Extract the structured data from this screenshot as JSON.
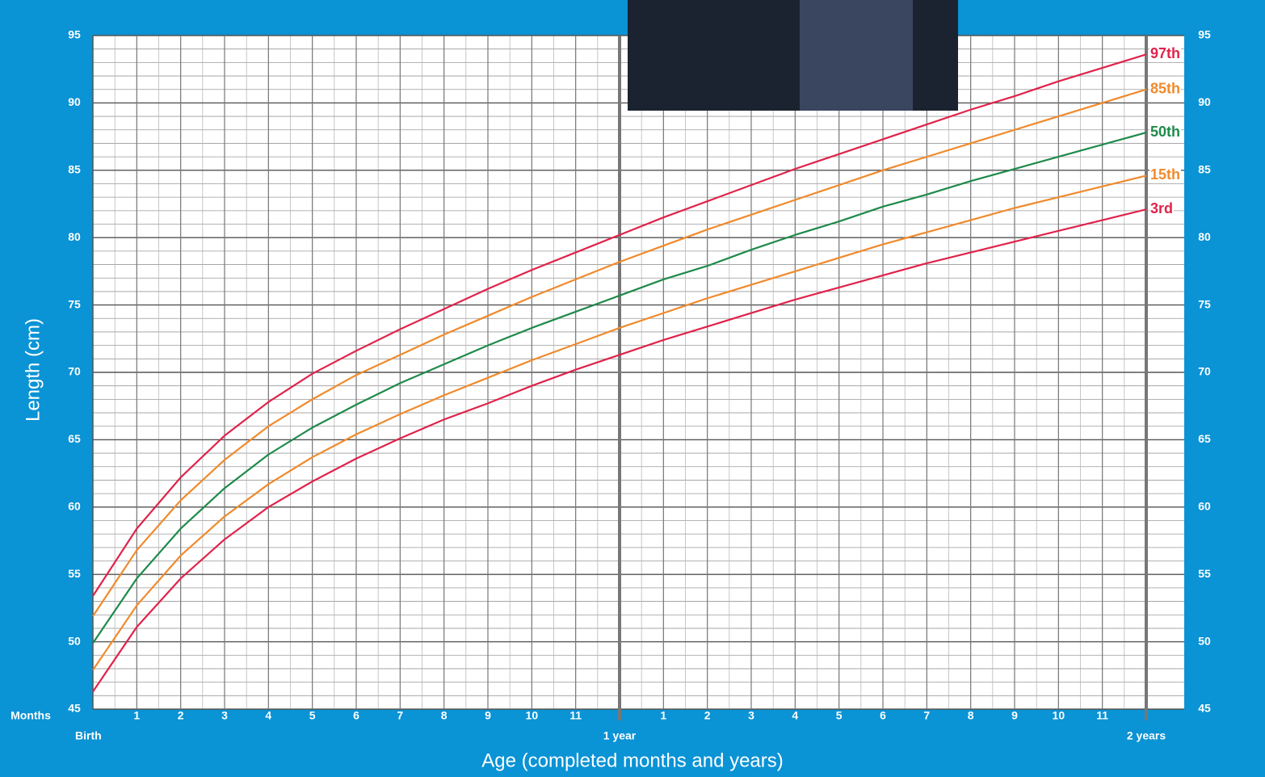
{
  "chart_data": {
    "type": "line",
    "y_label": "Length (cm)",
    "x_label": "Age (completed months and years)",
    "x_unit_label": "Months",
    "x": [
      0,
      1,
      2,
      3,
      4,
      5,
      6,
      7,
      8,
      9,
      10,
      11,
      12,
      13,
      14,
      15,
      16,
      17,
      18,
      19,
      20,
      21,
      22,
      23,
      24
    ],
    "series": [
      {
        "name": "97th",
        "color": "#e0234a",
        "values": [
          53.4,
          58.4,
          62.2,
          65.3,
          67.8,
          69.9,
          71.6,
          73.2,
          74.7,
          76.2,
          77.6,
          78.9,
          80.2,
          81.5,
          82.7,
          83.9,
          85.1,
          86.2,
          87.3,
          88.4,
          89.5,
          90.5,
          91.6,
          92.6,
          93.6
        ]
      },
      {
        "name": "85th",
        "color": "#f08a2c",
        "values": [
          51.9,
          56.8,
          60.5,
          63.5,
          66.0,
          68.0,
          69.8,
          71.3,
          72.8,
          74.2,
          75.6,
          76.9,
          78.2,
          79.4,
          80.6,
          81.7,
          82.8,
          83.9,
          85.0,
          86.0,
          87.0,
          88.0,
          89.0,
          90.0,
          91.0
        ]
      },
      {
        "name": "50th",
        "color": "#1e8a4a",
        "values": [
          49.9,
          54.7,
          58.4,
          61.4,
          63.9,
          65.9,
          67.6,
          69.2,
          70.6,
          72.0,
          73.3,
          74.5,
          75.7,
          76.9,
          77.9,
          79.1,
          80.2,
          81.2,
          82.3,
          83.2,
          84.2,
          85.1,
          86.0,
          86.9,
          87.8
        ]
      },
      {
        "name": "15th",
        "color": "#f08a2c",
        "values": [
          47.9,
          52.7,
          56.4,
          59.3,
          61.7,
          63.7,
          65.4,
          66.9,
          68.3,
          69.6,
          70.9,
          72.1,
          73.3,
          74.4,
          75.5,
          76.5,
          77.5,
          78.5,
          79.5,
          80.4,
          81.3,
          82.2,
          83.0,
          83.8,
          84.6
        ]
      },
      {
        "name": "3rd",
        "color": "#e0234a",
        "values": [
          46.3,
          51.1,
          54.7,
          57.6,
          60.0,
          61.9,
          63.6,
          65.1,
          66.5,
          67.7,
          69.0,
          70.2,
          71.3,
          72.4,
          73.4,
          74.4,
          75.4,
          76.3,
          77.2,
          78.1,
          78.9,
          79.7,
          80.5,
          81.3,
          82.1
        ]
      }
    ],
    "xlim": [
      0,
      24
    ],
    "ylim": [
      45,
      95
    ],
    "yticks": [
      45,
      50,
      55,
      60,
      65,
      70,
      75,
      80,
      85,
      90,
      95
    ],
    "xticks": [
      1,
      2,
      3,
      4,
      5,
      6,
      7,
      8,
      9,
      10,
      11,
      {
        "value": 13,
        "label": "1"
      },
      {
        "value": 14,
        "label": "2"
      },
      {
        "value": 15,
        "label": "3"
      },
      {
        "value": 16,
        "label": "4"
      },
      {
        "value": 17,
        "label": "5"
      },
      {
        "value": 18,
        "label": "6"
      },
      {
        "value": 19,
        "label": "7"
      },
      {
        "value": 20,
        "label": "8"
      },
      {
        "value": 21,
        "label": "9"
      },
      {
        "value": 22,
        "label": "10"
      },
      {
        "value": 23,
        "label": "11"
      }
    ],
    "xticks_major": [
      {
        "value": 0,
        "label": "Birth"
      },
      {
        "value": 12,
        "label": "1 year"
      },
      {
        "value": 24,
        "label": "2 years"
      }
    ],
    "y_minor_step": 1,
    "x_minor_step": 0.5,
    "grid": true
  }
}
